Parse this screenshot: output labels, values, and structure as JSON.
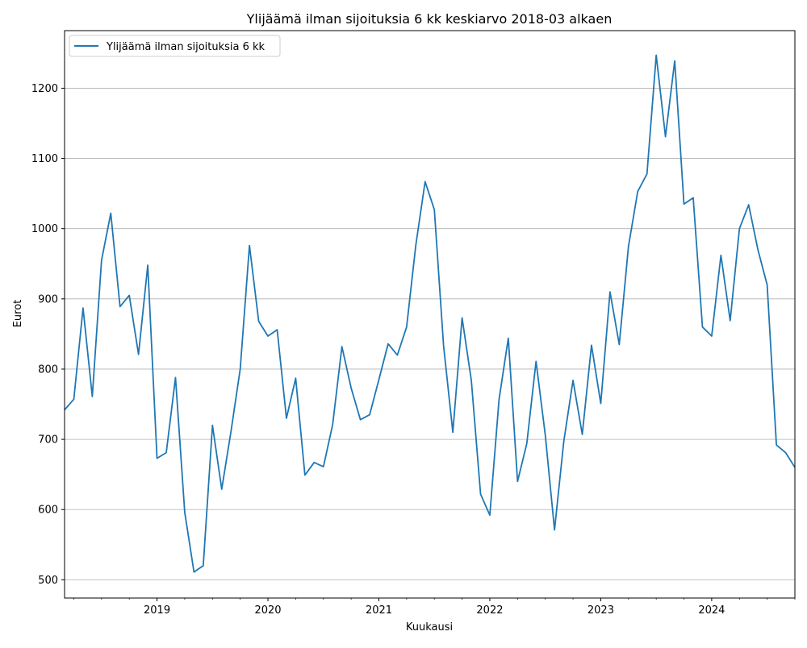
{
  "chart_data": {
    "type": "line",
    "title": "Ylijäämä ilman sijoituksia 6 kk keskiarvo 2018-03 alkaen",
    "xlabel": "Kuukausi",
    "ylabel": "Eurot",
    "x_start": "2018-03",
    "x_end": "2024-10",
    "x_ticks": [
      "2019",
      "2020",
      "2021",
      "2022",
      "2023",
      "2024"
    ],
    "y_ticks": [
      500,
      600,
      700,
      800,
      900,
      1000,
      1100,
      1200
    ],
    "ylim": [
      474,
      1282
    ],
    "grid": "horizontal",
    "legend_position": "top-left",
    "series": [
      {
        "name": "Ylijäämä ilman sijoituksia 6 kk",
        "color": "#1f77b4",
        "x": [
          "2018-03",
          "2018-04",
          "2018-05",
          "2018-06",
          "2018-07",
          "2018-08",
          "2018-09",
          "2018-10",
          "2018-11",
          "2018-12",
          "2019-01",
          "2019-02",
          "2019-03",
          "2019-04",
          "2019-05",
          "2019-06",
          "2019-07",
          "2019-08",
          "2019-09",
          "2019-10",
          "2019-11",
          "2019-12",
          "2020-01",
          "2020-02",
          "2020-03",
          "2020-04",
          "2020-05",
          "2020-06",
          "2020-07",
          "2020-08",
          "2020-09",
          "2020-10",
          "2020-11",
          "2020-12",
          "2021-01",
          "2021-02",
          "2021-03",
          "2021-04",
          "2021-05",
          "2021-06",
          "2021-07",
          "2021-08",
          "2021-09",
          "2021-10",
          "2021-11",
          "2021-12",
          "2022-01",
          "2022-02",
          "2022-03",
          "2022-04",
          "2022-05",
          "2022-06",
          "2022-07",
          "2022-08",
          "2022-09",
          "2022-10",
          "2022-11",
          "2022-12",
          "2023-01",
          "2023-02",
          "2023-03",
          "2023-04",
          "2023-05",
          "2023-06",
          "2023-07",
          "2023-08",
          "2023-09",
          "2023-10",
          "2023-11",
          "2023-12",
          "2024-01",
          "2024-02",
          "2024-03",
          "2024-04",
          "2024-05",
          "2024-06",
          "2024-07",
          "2024-08",
          "2024-09",
          "2024-10"
        ],
        "values": [
          742,
          757,
          887,
          761,
          955,
          1022,
          889,
          905,
          821,
          948,
          673,
          681,
          788,
          596,
          511,
          520,
          720,
          629,
          711,
          800,
          976,
          868,
          847,
          856,
          730,
          787,
          649,
          667,
          661,
          721,
          832,
          773,
          728,
          735,
          785,
          836,
          820,
          860,
          977,
          1067,
          1027,
          833,
          710,
          873,
          784,
          622,
          592,
          757,
          844,
          640,
          694,
          811,
          706,
          571,
          697,
          784,
          707,
          834,
          751,
          910,
          835,
          975,
          1053,
          1078,
          1247,
          1131,
          1239,
          1035,
          1044,
          860,
          847,
          962,
          869,
          1000,
          1034,
          970,
          920,
          692,
          681,
          660
        ]
      }
    ]
  }
}
